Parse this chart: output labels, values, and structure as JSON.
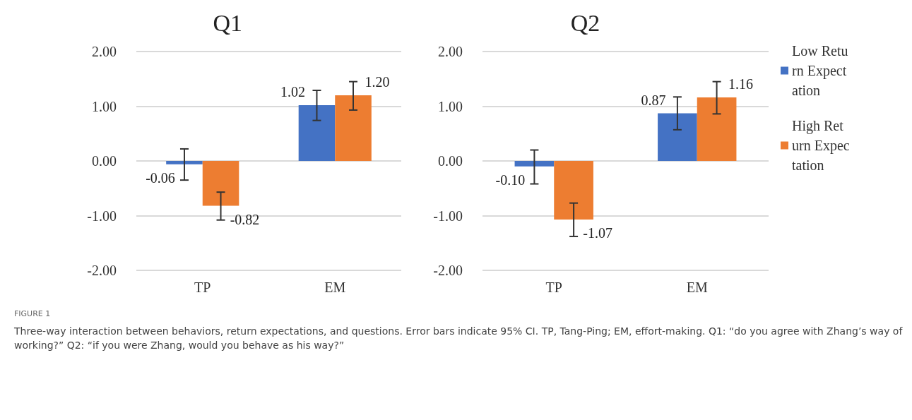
{
  "chart_data": [
    {
      "type": "bar",
      "title": "Q1",
      "categories": [
        "TP",
        "EM"
      ],
      "series": [
        {
          "color": "#4472c4",
          "values": [
            -0.06,
            1.02
          ],
          "errors": [
            [
              -0.35,
              0.22
            ],
            [
              0.74,
              1.29
            ]
          ],
          "value_labels": [
            "-0.06",
            "1.02"
          ]
        },
        {
          "color": "#ed7d31",
          "values": [
            -0.82,
            1.2
          ],
          "errors": [
            [
              -1.08,
              -0.57
            ],
            [
              0.93,
              1.45
            ]
          ],
          "value_labels": [
            "-0.82",
            "1.20"
          ]
        }
      ],
      "ylim": [
        -2,
        2
      ],
      "yticks": [
        {
          "value": -2,
          "label": "-2.00"
        },
        {
          "value": -1,
          "label": "-1.00"
        },
        {
          "value": 0,
          "label": "0.00"
        },
        {
          "value": 1,
          "label": "1.00"
        },
        {
          "value": 2,
          "label": "2.00"
        }
      ],
      "grid": "y",
      "legend": false,
      "annotations": [
        "FIGURE 1",
        "Three-way interaction between behaviors, return expectations, and questions. Error bars indicate 95% CI. TP, Tang-Ping; EM, effort-making. Q1: “do you agree with Zhang’s way of working?” Q2: “if you were Zhang, would you behave as his way?”"
      ]
    },
    {
      "type": "bar",
      "title": "Q2",
      "categories": [
        "TP",
        "EM"
      ],
      "series": [
        {
          "name": "Low Return Expectation",
          "color": "#4472c4",
          "values": [
            -0.1,
            0.87
          ],
          "errors": [
            [
              -0.42,
              0.2
            ],
            [
              0.57,
              1.17
            ]
          ],
          "value_labels": [
            "-0.10",
            "0.87"
          ]
        },
        {
          "name": "High Return Expectation",
          "color": "#ed7d31",
          "values": [
            -1.07,
            1.16
          ],
          "errors": [
            [
              -1.38,
              -0.77
            ],
            [
              0.86,
              1.45
            ]
          ],
          "value_labels": [
            "-1.07",
            "1.16"
          ]
        }
      ],
      "ylim": [
        -2,
        2
      ],
      "yticks": [
        {
          "value": -2,
          "label": "-2.00"
        },
        {
          "value": -1,
          "label": "-1.00"
        },
        {
          "value": 0,
          "label": "0.00"
        },
        {
          "value": 1,
          "label": "1.00"
        },
        {
          "value": 2,
          "label": "2.00"
        }
      ],
      "grid": "y",
      "legend": "right"
    }
  ]
}
